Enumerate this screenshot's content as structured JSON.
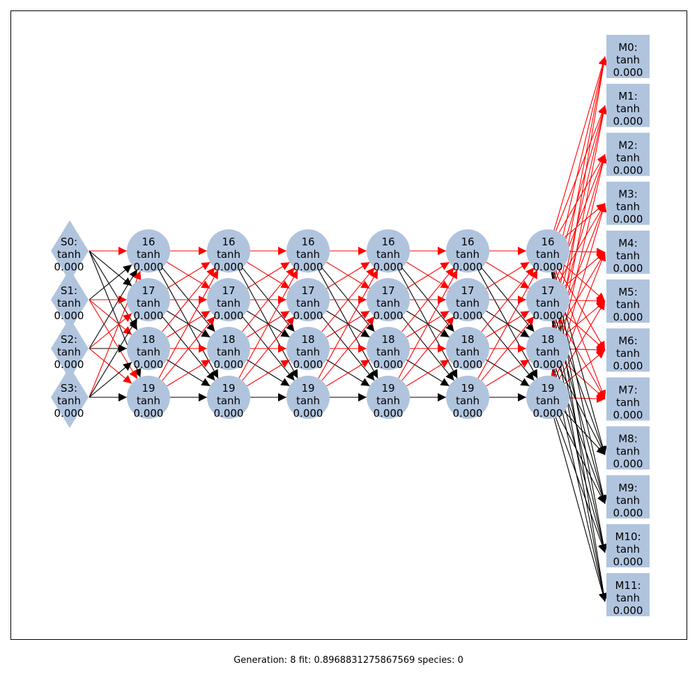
{
  "colors": {
    "node_fill": "#b0c4de",
    "positive_edge": "#ff0000",
    "negative_edge": "#000000",
    "frame": "#000000"
  },
  "sensors": [
    {
      "name": "S0:",
      "activation": "tanh",
      "value": "0.000"
    },
    {
      "name": "S1:",
      "activation": "tanh",
      "value": "0.000"
    },
    {
      "name": "S2:",
      "activation": "tanh",
      "value": "0.000"
    },
    {
      "name": "S3:",
      "activation": "tanh",
      "value": "0.000"
    }
  ],
  "hidden_layers": [
    [
      {
        "name": "16",
        "activation": "tanh",
        "value": "0.000"
      },
      {
        "name": "17",
        "activation": "tanh",
        "value": "0.000"
      },
      {
        "name": "18",
        "activation": "tanh",
        "value": "0.000"
      },
      {
        "name": "19",
        "activation": "tanh",
        "value": "0.000"
      }
    ],
    [
      {
        "name": "16",
        "activation": "tanh",
        "value": "0.000"
      },
      {
        "name": "17",
        "activation": "tanh",
        "value": "0.000"
      },
      {
        "name": "18",
        "activation": "tanh",
        "value": "0.000"
      },
      {
        "name": "19",
        "activation": "tanh",
        "value": "0.000"
      }
    ],
    [
      {
        "name": "16",
        "activation": "tanh",
        "value": "0.000"
      },
      {
        "name": "17",
        "activation": "tanh",
        "value": "0.000"
      },
      {
        "name": "18",
        "activation": "tanh",
        "value": "0.000"
      },
      {
        "name": "19",
        "activation": "tanh",
        "value": "0.000"
      }
    ],
    [
      {
        "name": "16",
        "activation": "tanh",
        "value": "0.000"
      },
      {
        "name": "17",
        "activation": "tanh",
        "value": "0.000"
      },
      {
        "name": "18",
        "activation": "tanh",
        "value": "0.000"
      },
      {
        "name": "19",
        "activation": "tanh",
        "value": "0.000"
      }
    ],
    [
      {
        "name": "16",
        "activation": "tanh",
        "value": "0.000"
      },
      {
        "name": "17",
        "activation": "tanh",
        "value": "0.000"
      },
      {
        "name": "18",
        "activation": "tanh",
        "value": "0.000"
      },
      {
        "name": "19",
        "activation": "tanh",
        "value": "0.000"
      }
    ],
    [
      {
        "name": "16",
        "activation": "tanh",
        "value": "0.000"
      },
      {
        "name": "17",
        "activation": "tanh",
        "value": "0.000"
      },
      {
        "name": "18",
        "activation": "tanh",
        "value": "0.000"
      },
      {
        "name": "19",
        "activation": "tanh",
        "value": "0.000"
      }
    ]
  ],
  "motors": [
    {
      "name": "M0:",
      "activation": "tanh",
      "value": "0.000"
    },
    {
      "name": "M1:",
      "activation": "tanh",
      "value": "0.000"
    },
    {
      "name": "M2:",
      "activation": "tanh",
      "value": "0.000"
    },
    {
      "name": "M3:",
      "activation": "tanh",
      "value": "0.000"
    },
    {
      "name": "M4:",
      "activation": "tanh",
      "value": "0.000"
    },
    {
      "name": "M5:",
      "activation": "tanh",
      "value": "0.000"
    },
    {
      "name": "M6:",
      "activation": "tanh",
      "value": "0.000"
    },
    {
      "name": "M7:",
      "activation": "tanh",
      "value": "0.000"
    },
    {
      "name": "M8:",
      "activation": "tanh",
      "value": "0.000"
    },
    {
      "name": "M9:",
      "activation": "tanh",
      "value": "0.000"
    },
    {
      "name": "M10:",
      "activation": "tanh",
      "value": "0.000"
    },
    {
      "name": "M11:",
      "activation": "tanh",
      "value": "0.000"
    }
  ],
  "edges_first": [
    [
      1,
      0,
      0,
      0
    ],
    [
      0,
      1,
      1,
      1
    ],
    [
      0,
      1,
      0,
      1
    ],
    [
      1,
      0,
      0,
      0
    ]
  ],
  "edges_hidden": [
    [
      1,
      1,
      0,
      0
    ],
    [
      1,
      1,
      0,
      0
    ],
    [
      1,
      1,
      1,
      0
    ],
    [
      1,
      1,
      1,
      0
    ]
  ],
  "edges_motor_positive_rows": [
    0,
    1,
    2,
    3,
    4,
    5,
    6,
    7
  ],
  "caption": {
    "generation_label": "Generation:",
    "generation": "8",
    "fit_label": "fit:",
    "fit": "0.8968831275867569",
    "species_label": "species:",
    "species": "0"
  }
}
